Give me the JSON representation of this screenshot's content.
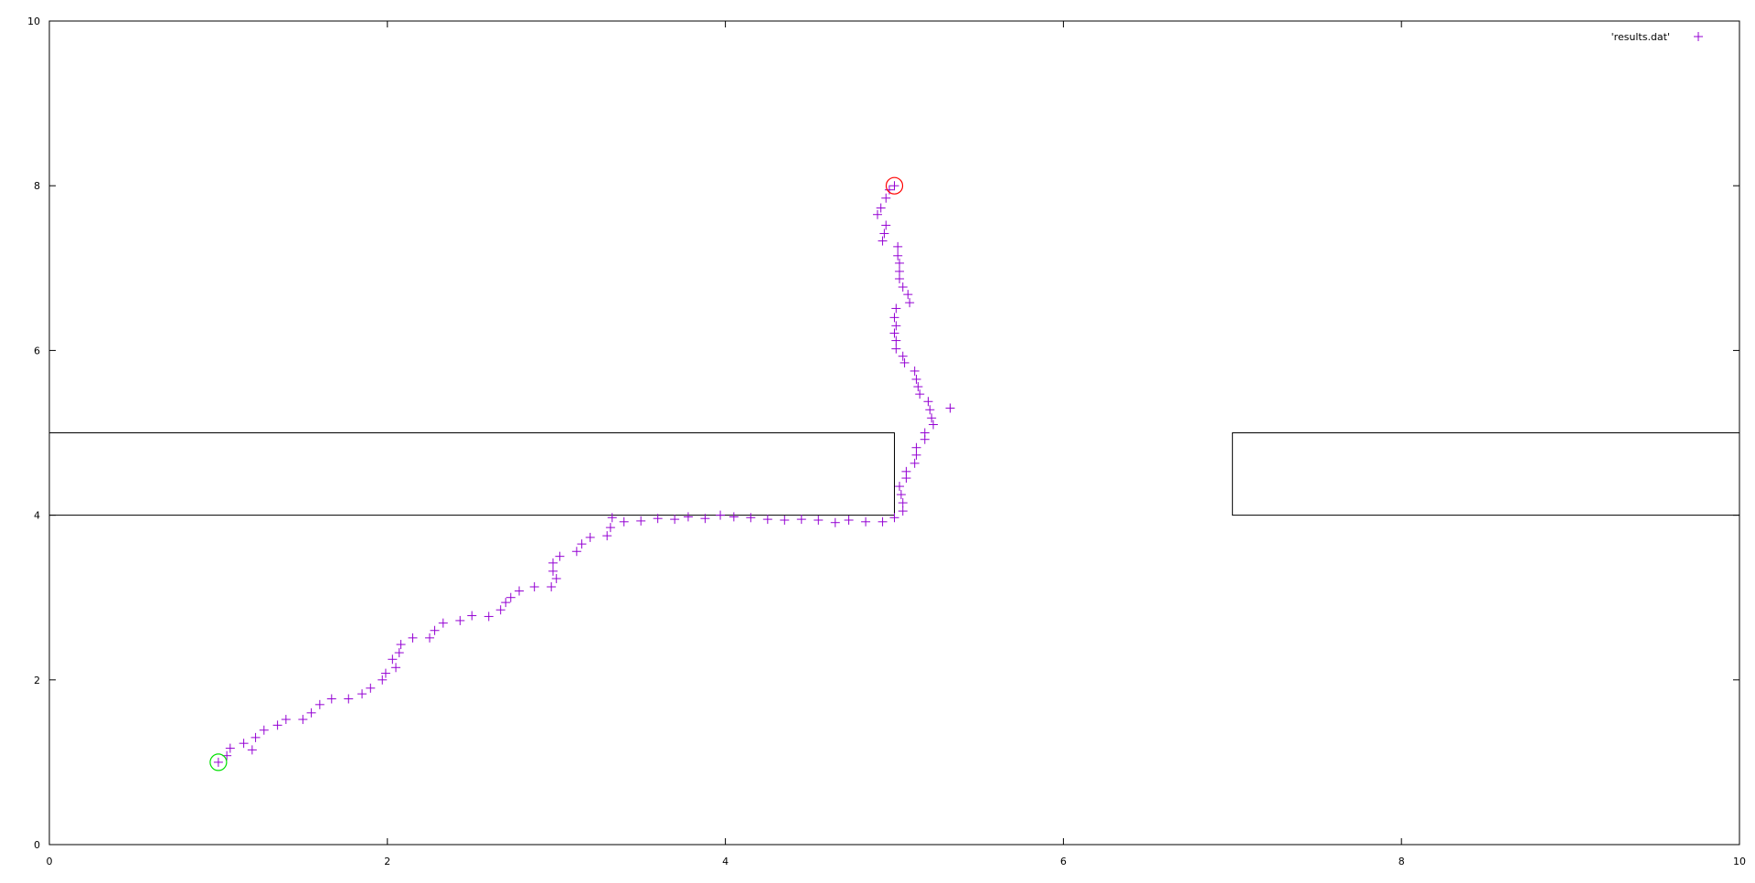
{
  "chart_data": {
    "type": "scatter",
    "title": "",
    "xlabel": "",
    "ylabel": "",
    "xlim": [
      0,
      10
    ],
    "ylim": [
      0,
      10
    ],
    "x_ticks": [
      "0",
      "2",
      "4",
      "6",
      "8",
      "10"
    ],
    "y_ticks": [
      "0",
      "2",
      "4",
      "6",
      "8",
      "10"
    ],
    "grid": false,
    "legend": {
      "position": "top-right",
      "label": "'results.dat'",
      "color": "#9400d3"
    },
    "series": [
      {
        "name": "'results.dat'",
        "marker": "plus",
        "color": "#9400d3",
        "points": [
          [
            1.0,
            1.0
          ],
          [
            1.05,
            1.08
          ],
          [
            1.07,
            1.17
          ],
          [
            1.15,
            1.23
          ],
          [
            1.2,
            1.15
          ],
          [
            1.22,
            1.3
          ],
          [
            1.27,
            1.39
          ],
          [
            1.35,
            1.45
          ],
          [
            1.4,
            1.52
          ],
          [
            1.5,
            1.52
          ],
          [
            1.55,
            1.6
          ],
          [
            1.6,
            1.7
          ],
          [
            1.67,
            1.77
          ],
          [
            1.77,
            1.77
          ],
          [
            1.85,
            1.83
          ],
          [
            1.9,
            1.9
          ],
          [
            1.97,
            2.0
          ],
          [
            1.99,
            2.08
          ],
          [
            2.03,
            2.25
          ],
          [
            2.05,
            2.15
          ],
          [
            2.07,
            2.33
          ],
          [
            2.08,
            2.43
          ],
          [
            2.15,
            2.51
          ],
          [
            2.25,
            2.51
          ],
          [
            2.28,
            2.6
          ],
          [
            2.33,
            2.69
          ],
          [
            2.43,
            2.72
          ],
          [
            2.5,
            2.78
          ],
          [
            2.6,
            2.77
          ],
          [
            2.67,
            2.85
          ],
          [
            2.7,
            2.94
          ],
          [
            2.73,
            3.0
          ],
          [
            2.78,
            3.08
          ],
          [
            2.87,
            3.13
          ],
          [
            2.97,
            3.13
          ],
          [
            2.98,
            3.32
          ],
          [
            2.98,
            3.42
          ],
          [
            3.0,
            3.23
          ],
          [
            3.02,
            3.5
          ],
          [
            3.12,
            3.56
          ],
          [
            3.15,
            3.65
          ],
          [
            3.2,
            3.73
          ],
          [
            3.3,
            3.75
          ],
          [
            3.32,
            3.85
          ],
          [
            3.33,
            3.97
          ],
          [
            3.4,
            3.92
          ],
          [
            3.5,
            3.93
          ],
          [
            3.6,
            3.96
          ],
          [
            3.7,
            3.95
          ],
          [
            3.78,
            3.98
          ],
          [
            3.88,
            3.96
          ],
          [
            3.97,
            4.0
          ],
          [
            4.05,
            3.98
          ],
          [
            4.15,
            3.97
          ],
          [
            4.25,
            3.95
          ],
          [
            4.35,
            3.94
          ],
          [
            4.45,
            3.95
          ],
          [
            4.55,
            3.94
          ],
          [
            4.65,
            3.91
          ],
          [
            4.73,
            3.94
          ],
          [
            4.83,
            3.92
          ],
          [
            4.93,
            3.92
          ],
          [
            5.0,
            3.97
          ],
          [
            5.05,
            4.05
          ],
          [
            5.05,
            4.15
          ],
          [
            5.04,
            4.25
          ],
          [
            5.03,
            4.35
          ],
          [
            5.07,
            4.45
          ],
          [
            5.07,
            4.53
          ],
          [
            5.12,
            4.63
          ],
          [
            5.13,
            4.73
          ],
          [
            5.13,
            4.82
          ],
          [
            5.18,
            4.92
          ],
          [
            5.18,
            5.0
          ],
          [
            5.23,
            5.1
          ],
          [
            5.22,
            5.18
          ],
          [
            5.21,
            5.28
          ],
          [
            5.2,
            5.38
          ],
          [
            5.33,
            5.3
          ],
          [
            5.15,
            5.47
          ],
          [
            5.14,
            5.56
          ],
          [
            5.13,
            5.65
          ],
          [
            5.12,
            5.75
          ],
          [
            5.06,
            5.85
          ],
          [
            5.05,
            5.93
          ],
          [
            5.01,
            6.02
          ],
          [
            5.01,
            6.12
          ],
          [
            5.0,
            6.21
          ],
          [
            5.01,
            6.3
          ],
          [
            5.0,
            6.4
          ],
          [
            5.01,
            6.51
          ],
          [
            5.09,
            6.58
          ],
          [
            5.08,
            6.68
          ],
          [
            5.05,
            6.77
          ],
          [
            5.03,
            6.87
          ],
          [
            5.03,
            6.96
          ],
          [
            5.03,
            7.06
          ],
          [
            5.02,
            7.15
          ],
          [
            5.02,
            7.26
          ],
          [
            4.93,
            7.33
          ],
          [
            4.94,
            7.42
          ],
          [
            4.95,
            7.52
          ],
          [
            4.9,
            7.65
          ],
          [
            4.92,
            7.73
          ],
          [
            4.95,
            7.85
          ],
          [
            4.97,
            7.95
          ],
          [
            5.0,
            8.0
          ]
        ]
      }
    ],
    "obstacles": [
      {
        "x0": 0,
        "x1": 5,
        "y0": 4,
        "y1": 5
      },
      {
        "x0": 7,
        "x1": 10,
        "y0": 4,
        "y1": 5
      }
    ],
    "annotations": [
      {
        "kind": "circle",
        "x": 1.0,
        "y": 1.0,
        "color": "#00e000",
        "meaning": "start"
      },
      {
        "kind": "circle",
        "x": 5.0,
        "y": 8.0,
        "color": "#ff0000",
        "meaning": "end"
      }
    ]
  }
}
